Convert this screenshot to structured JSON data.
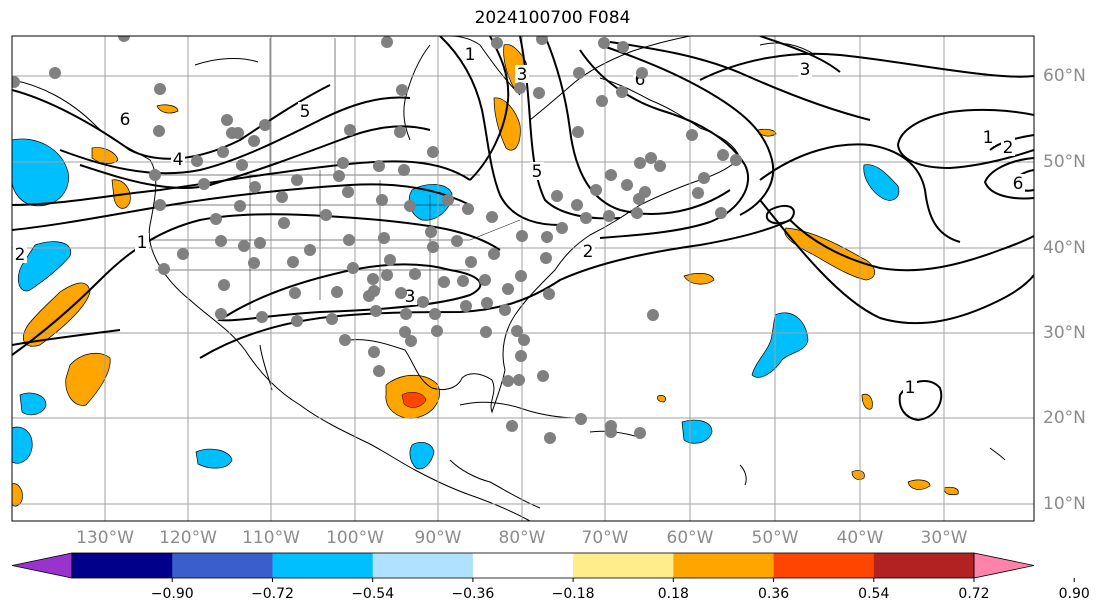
{
  "title": "2024100700 F084",
  "longitude_labels": [
    "130°W",
    "120°W",
    "110°W",
    "100°W",
    "90°W",
    "80°W",
    "70°W",
    "60°W",
    "50°W",
    "40°W",
    "30°W"
  ],
  "latitude_labels": [
    "60°N",
    "50°N",
    "40°N",
    "30°N",
    "20°N",
    "10°N"
  ],
  "colorbar": {
    "ticks": [
      "−0.90",
      "−0.72",
      "−0.54",
      "−0.36",
      "−0.18",
      "0.18",
      "0.36",
      "0.54",
      "0.72",
      "0.90"
    ],
    "colors": [
      "#9a32cd",
      "#00008b",
      "#3a5fcd",
      "#00bfff",
      "#b0e2ff",
      "#ffffff",
      "#ffec8b",
      "#ffa500",
      "#ff4500",
      "#b22222",
      "#ff82ab"
    ]
  },
  "contour_labels": [
    "6",
    "5",
    "4",
    "3",
    "2",
    "1",
    "6",
    "5",
    "3",
    "2",
    "1",
    "6",
    "2",
    "1",
    "3",
    "1"
  ],
  "colors": {
    "grid": "#a0a0a0",
    "contour": "#000000",
    "station_marker": "#808080",
    "coastline": "#000000",
    "axis_label": "#8c8c8c"
  }
}
